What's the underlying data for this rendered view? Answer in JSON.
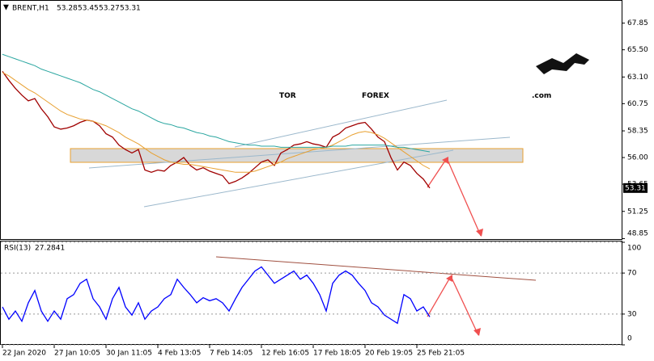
{
  "chart_data": [
    {
      "type": "line",
      "title": "BRENT,H1",
      "ohlc": [
        53.28,
        53.45,
        53.27,
        53.31
      ],
      "watermark": {
        "part1": "TOR",
        "part2": "FOREX",
        "part3": ".com"
      },
      "categories": [
        "22 Jan 2020",
        null,
        null,
        null,
        null,
        null,
        null,
        null,
        "27 Jan 10:05",
        null,
        null,
        null,
        null,
        null,
        null,
        null,
        "30 Jan 11:05",
        null,
        null,
        null,
        null,
        null,
        null,
        null,
        "4 Feb 13:05",
        null,
        null,
        null,
        null,
        null,
        null,
        null,
        "7 Feb 14:05",
        null,
        null,
        null,
        null,
        null,
        null,
        null,
        "12 Feb 16:05",
        null,
        null,
        null,
        null,
        null,
        null,
        null,
        "17 Feb 18:05",
        null,
        null,
        null,
        null,
        null,
        null,
        null,
        "20 Feb 19:05",
        null,
        null,
        null,
        null,
        null,
        null,
        null,
        "25 Feb 21:05",
        null,
        null
      ],
      "series": [
        {
          "color": "#a00000",
          "values": [
            63.6,
            62.8,
            62.1,
            61.5,
            61.0,
            61.2,
            60.3,
            59.6,
            58.7,
            58.5,
            58.6,
            58.8,
            59.1,
            59.3,
            59.2,
            58.8,
            58.1,
            57.8,
            57.1,
            56.7,
            56.4,
            56.7,
            54.9,
            54.7,
            54.9,
            54.8,
            55.3,
            55.6,
            56.0,
            55.3,
            54.9,
            55.1,
            54.8,
            54.6,
            54.4,
            53.7,
            53.9,
            54.2,
            54.6,
            55.1,
            55.6,
            55.8,
            55.3,
            56.4,
            56.7,
            57.1,
            57.2,
            57.4,
            57.2,
            57.1,
            56.9,
            57.8,
            58.1,
            58.6,
            58.8,
            59.0,
            59.1,
            58.5,
            57.8,
            57.4,
            56.0,
            54.9,
            55.6,
            55.3,
            54.6,
            54.1,
            53.31
          ]
        },
        {
          "color": "#e8a030",
          "values": [
            63.5,
            63.2,
            62.8,
            62.4,
            62.0,
            61.7,
            61.3,
            60.9,
            60.5,
            60.1,
            59.8,
            59.6,
            59.4,
            59.3,
            59.2,
            59.0,
            58.8,
            58.5,
            58.2,
            57.8,
            57.5,
            57.2,
            56.8,
            56.4,
            56.1,
            55.8,
            55.6,
            55.5,
            55.4,
            55.4,
            55.3,
            55.2,
            55.1,
            55.0,
            54.9,
            54.8,
            54.7,
            54.7,
            54.7,
            54.8,
            55.0,
            55.2,
            55.4,
            55.6,
            55.9,
            56.1,
            56.3,
            56.5,
            56.7,
            56.8,
            56.9,
            57.1,
            57.4,
            57.7,
            58.0,
            58.2,
            58.3,
            58.2,
            58.0,
            57.7,
            57.3,
            56.9,
            56.5,
            56.1,
            55.7,
            55.3,
            55.0
          ]
        },
        {
          "color": "#2aa6a0",
          "values": [
            65.1,
            64.9,
            64.7,
            64.5,
            64.3,
            64.1,
            63.8,
            63.6,
            63.4,
            63.2,
            63.0,
            62.8,
            62.6,
            62.3,
            62.0,
            61.8,
            61.5,
            61.2,
            60.9,
            60.6,
            60.3,
            60.1,
            59.8,
            59.5,
            59.2,
            59.0,
            58.9,
            58.7,
            58.6,
            58.4,
            58.2,
            58.1,
            57.9,
            57.8,
            57.6,
            57.4,
            57.3,
            57.2,
            57.1,
            57.1,
            57.0,
            57.0,
            57.0,
            56.9,
            56.9,
            56.9,
            56.9,
            56.9,
            56.9,
            56.9,
            56.9,
            57.0,
            57.0,
            57.0,
            57.1,
            57.1,
            57.1,
            57.1,
            57.1,
            57.1,
            57.0,
            56.9,
            56.9,
            56.8,
            56.7,
            56.6,
            56.5
          ]
        }
      ],
      "ylim": [
        48.74,
        69.89
      ],
      "yticks": [
        48.85,
        51.25,
        53.65,
        {
          "value": 56,
          "label": "56.00"
        },
        58.35,
        60.75,
        {
          "value": 63.1,
          "label": "63.10"
        },
        {
          "value": 65.5,
          "label": "65.50"
        },
        67.85
      ],
      "grid": false
    },
    {
      "type": "line",
      "title": "RSI(13)",
      "series": [
        {
          "color": "#0000ff",
          "values": [
            37,
            25,
            33,
            23,
            41,
            53,
            33,
            23,
            33,
            25,
            45,
            49,
            60,
            64,
            45,
            37,
            25,
            45,
            56,
            37,
            29,
            41,
            25,
            33,
            37,
            45,
            49,
            64,
            56,
            49,
            41,
            46,
            43,
            45,
            41,
            33,
            45,
            56,
            64,
            72,
            76,
            68,
            60,
            64,
            68,
            72,
            64,
            68,
            60,
            49,
            33,
            60,
            68,
            72,
            68,
            60,
            53,
            41,
            37,
            29,
            25,
            21,
            49,
            45,
            33,
            37,
            27.2841
          ]
        }
      ],
      "ylim": [
        0,
        100
      ],
      "yticks": [
        0,
        30,
        70,
        100
      ],
      "grid": true
    }
  ]
}
